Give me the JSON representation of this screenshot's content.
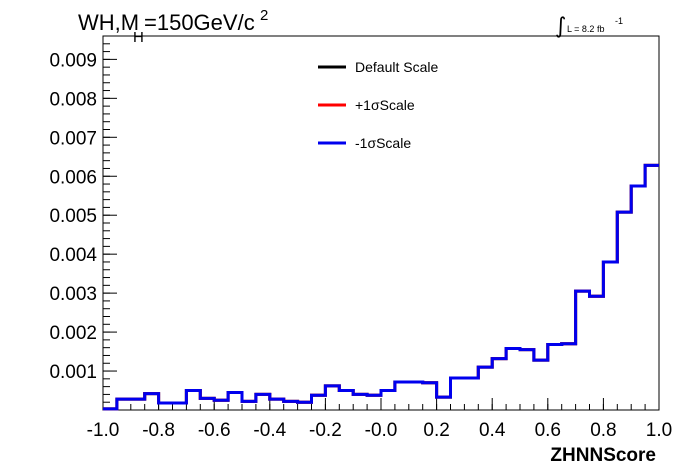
{
  "chart_data": {
    "type": "step",
    "title_main": "WH,M",
    "title_sub": "H",
    "title_rest": "=150GeV/c",
    "title_sup": "2",
    "lumi_text": "L = 8.2 fb",
    "lumi_sup": "-1",
    "xlabel": "ZHNNScore",
    "xlim": [
      -1.0,
      1.0
    ],
    "ylim": [
      0,
      0.0096
    ],
    "xticks": [
      "-1.0",
      "-0.8",
      "-0.6",
      "-0.4",
      "-0.2",
      "-0.0",
      "0.2",
      "0.4",
      "0.6",
      "0.8",
      "1.0"
    ],
    "yticks": [
      "0.001",
      "0.002",
      "0.003",
      "0.004",
      "0.005",
      "0.006",
      "0.007",
      "0.008",
      "0.009"
    ],
    "bin_edges": [
      -1.0,
      -0.95,
      -0.9,
      -0.85,
      -0.8,
      -0.75,
      -0.7,
      -0.65,
      -0.6,
      -0.55,
      -0.5,
      -0.45,
      -0.4,
      -0.35,
      -0.3,
      -0.25,
      -0.2,
      -0.15,
      -0.1,
      -0.05,
      0.0,
      0.05,
      0.1,
      0.15,
      0.2,
      0.25,
      0.3,
      0.35,
      0.4,
      0.45,
      0.5,
      0.55,
      0.6,
      0.65,
      0.7,
      0.75,
      0.8,
      0.85,
      0.9,
      0.95,
      1.0
    ],
    "series": [
      {
        "name": "Default Scale",
        "color": "#000000",
        "values": [
          3e-05,
          0.00028,
          0.00028,
          0.00042,
          0.00018,
          0.00018,
          0.0005,
          0.0003,
          0.00025,
          0.00045,
          0.00022,
          0.0004,
          0.00028,
          0.00022,
          0.0002,
          0.00038,
          0.00062,
          0.0005,
          0.0004,
          0.00038,
          0.0005,
          0.00072,
          0.00072,
          0.0007,
          0.00033,
          0.00082,
          0.00082,
          0.0011,
          0.00132,
          0.00158,
          0.00155,
          0.00128,
          0.00168,
          0.0017,
          0.00305,
          0.00292,
          0.0038,
          0.00508,
          0.00575,
          0.00628
        ]
      },
      {
        "name": "+1σScale",
        "color": "#ff0000",
        "values": [
          3e-05,
          0.00028,
          0.00028,
          0.00042,
          0.00018,
          0.00018,
          0.0005,
          0.0003,
          0.00025,
          0.00045,
          0.00022,
          0.0004,
          0.00028,
          0.00022,
          0.0002,
          0.00038,
          0.00062,
          0.0005,
          0.0004,
          0.00038,
          0.0005,
          0.00072,
          0.00072,
          0.0007,
          0.00033,
          0.00082,
          0.00082,
          0.0011,
          0.00132,
          0.00158,
          0.00155,
          0.00128,
          0.00168,
          0.0017,
          0.00305,
          0.00292,
          0.0038,
          0.00508,
          0.00575,
          0.00628
        ]
      },
      {
        "name": "-1σScale",
        "color": "#0000ee",
        "values": [
          3e-05,
          0.00028,
          0.00028,
          0.00042,
          0.00018,
          0.00018,
          0.0005,
          0.0003,
          0.00025,
          0.00045,
          0.00022,
          0.0004,
          0.00028,
          0.00022,
          0.0002,
          0.00038,
          0.00062,
          0.0005,
          0.0004,
          0.00038,
          0.0005,
          0.00072,
          0.00072,
          0.0007,
          0.00033,
          0.00082,
          0.00082,
          0.0011,
          0.00132,
          0.00158,
          0.00155,
          0.00128,
          0.00168,
          0.0017,
          0.00305,
          0.00292,
          0.0038,
          0.00508,
          0.00575,
          0.00628
        ]
      }
    ],
    "legend_position": "top-center"
  }
}
